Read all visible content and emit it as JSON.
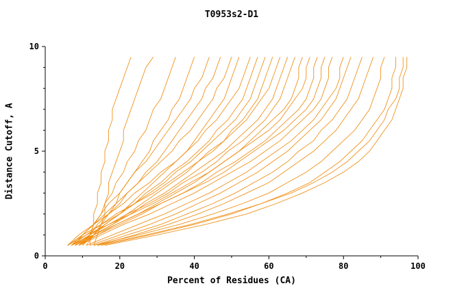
{
  "title": "T0953s2-D1",
  "axes": {
    "x_label": "Percent of Residues (CA)",
    "y_label": "Distance Cutoff, A",
    "x_ticks_major": [
      0,
      20,
      40,
      60,
      80,
      100
    ],
    "x_ticks_minor": [
      10,
      30,
      50,
      70,
      90
    ],
    "y_ticks_major": [
      0,
      5,
      10
    ],
    "y_ticks_minor": [
      1,
      2,
      3,
      4,
      6,
      7,
      8,
      9
    ]
  },
  "chart_data": {
    "type": "line",
    "title": "T0953s2-D1",
    "xlabel": "Percent of Residues (CA)",
    "ylabel": "Distance Cutoff, A",
    "xlim": [
      0,
      100
    ],
    "ylim": [
      0,
      10
    ],
    "grid": false,
    "legend": "none",
    "line_color": "#ee8500",
    "axis_color": "#000000",
    "cutoffs": [
      0.5,
      1,
      1.5,
      2,
      2.5,
      3,
      3.5,
      4,
      4.5,
      5,
      5.5,
      6,
      6.5,
      7,
      7.5,
      8,
      8.5,
      9,
      9.5
    ],
    "series": [
      [
        12,
        12,
        13,
        13,
        14,
        14,
        15,
        15,
        16,
        16,
        17,
        17,
        18,
        18,
        19,
        20,
        21,
        22,
        23
      ],
      [
        13,
        14,
        15,
        16,
        16,
        17,
        17,
        18,
        19,
        20,
        21,
        21,
        22,
        23,
        24,
        25,
        26,
        27,
        29
      ],
      [
        10,
        12,
        13,
        15,
        16,
        18,
        19,
        21,
        22,
        24,
        25,
        27,
        28,
        29,
        31,
        32,
        33,
        34,
        35
      ],
      [
        11,
        13,
        15,
        17,
        19,
        20,
        22,
        24,
        26,
        28,
        29,
        31,
        33,
        34,
        36,
        37,
        38,
        39,
        40
      ],
      [
        8,
        10,
        13,
        15,
        17,
        20,
        22,
        24,
        27,
        29,
        31,
        33,
        35,
        37,
        39,
        40,
        42,
        43,
        44
      ],
      [
        9,
        12,
        14,
        17,
        20,
        22,
        25,
        27,
        30,
        32,
        34,
        36,
        38,
        40,
        42,
        43,
        45,
        46,
        47
      ],
      [
        7,
        10,
        13,
        16,
        19,
        22,
        25,
        28,
        31,
        34,
        36,
        39,
        41,
        43,
        45,
        46,
        48,
        49,
        50
      ],
      [
        10,
        13,
        16,
        20,
        23,
        26,
        29,
        32,
        35,
        38,
        40,
        42,
        44,
        46,
        48,
        49,
        50,
        51,
        52
      ],
      [
        6,
        9,
        13,
        17,
        21,
        24,
        28,
        31,
        35,
        38,
        41,
        43,
        46,
        48,
        50,
        52,
        53,
        54,
        55
      ],
      [
        8,
        12,
        16,
        20,
        24,
        27,
        31,
        34,
        38,
        41,
        44,
        46,
        49,
        51,
        53,
        54,
        55,
        56,
        57
      ],
      [
        7,
        11,
        15,
        19,
        24,
        28,
        32,
        35,
        39,
        42,
        45,
        48,
        51,
        53,
        55,
        56,
        57,
        58,
        59
      ],
      [
        9,
        13,
        18,
        22,
        26,
        30,
        34,
        38,
        41,
        45,
        48,
        50,
        53,
        55,
        57,
        58,
        59,
        60,
        61
      ],
      [
        6,
        10,
        15,
        20,
        24,
        29,
        33,
        37,
        41,
        44,
        48,
        51,
        54,
        56,
        58,
        60,
        61,
        62,
        63
      ],
      [
        8,
        13,
        18,
        23,
        27,
        32,
        36,
        40,
        44,
        48,
        51,
        54,
        57,
        59,
        61,
        62,
        63,
        64,
        65
      ],
      [
        7,
        12,
        17,
        22,
        28,
        33,
        37,
        42,
        46,
        49,
        53,
        56,
        59,
        61,
        63,
        64,
        65,
        66,
        67
      ],
      [
        9,
        14,
        19,
        25,
        30,
        35,
        40,
        44,
        48,
        52,
        55,
        58,
        61,
        64,
        66,
        67,
        68,
        68,
        69
      ],
      [
        6,
        11,
        17,
        23,
        29,
        34,
        39,
        44,
        48,
        52,
        56,
        60,
        63,
        65,
        67,
        69,
        70,
        70,
        71
      ],
      [
        8,
        14,
        20,
        26,
        31,
        37,
        42,
        46,
        51,
        55,
        59,
        62,
        65,
        68,
        70,
        71,
        72,
        72,
        73
      ],
      [
        7,
        13,
        19,
        25,
        31,
        37,
        43,
        48,
        52,
        56,
        60,
        64,
        67,
        70,
        72,
        73,
        74,
        74,
        75
      ],
      [
        9,
        15,
        21,
        28,
        34,
        40,
        45,
        50,
        55,
        59,
        63,
        66,
        69,
        72,
        74,
        75,
        76,
        76,
        77
      ],
      [
        11,
        18,
        25,
        32,
        38,
        44,
        49,
        54,
        58,
        62,
        66,
        69,
        72,
        74,
        76,
        78,
        79,
        79,
        80
      ],
      [
        12,
        20,
        28,
        35,
        41,
        47,
        52,
        57,
        61,
        65,
        68,
        71,
        74,
        76,
        78,
        79,
        80,
        81,
        82
      ],
      [
        13,
        22,
        31,
        38,
        45,
        51,
        56,
        61,
        65,
        68,
        72,
        74,
        77,
        79,
        81,
        82,
        83,
        84,
        85
      ],
      [
        14,
        24,
        33,
        41,
        48,
        54,
        60,
        64,
        68,
        72,
        75,
        78,
        80,
        82,
        84,
        85,
        86,
        87,
        88
      ],
      [
        13,
        25,
        36,
        45,
        53,
        60,
        65,
        70,
        74,
        77,
        80,
        83,
        85,
        87,
        88,
        89,
        90,
        90,
        91
      ],
      [
        15,
        28,
        40,
        50,
        58,
        65,
        71,
        75,
        79,
        82,
        85,
        87,
        89,
        91,
        92,
        93,
        93,
        94,
        94
      ],
      [
        14,
        27,
        39,
        49,
        58,
        66,
        72,
        77,
        81,
        84,
        87,
        89,
        91,
        92,
        94,
        95,
        95,
        96,
        96
      ],
      [
        16,
        30,
        43,
        54,
        62,
        69,
        75,
        80,
        84,
        87,
        89,
        91,
        93,
        94,
        95,
        96,
        96,
        97,
        97
      ]
    ]
  }
}
